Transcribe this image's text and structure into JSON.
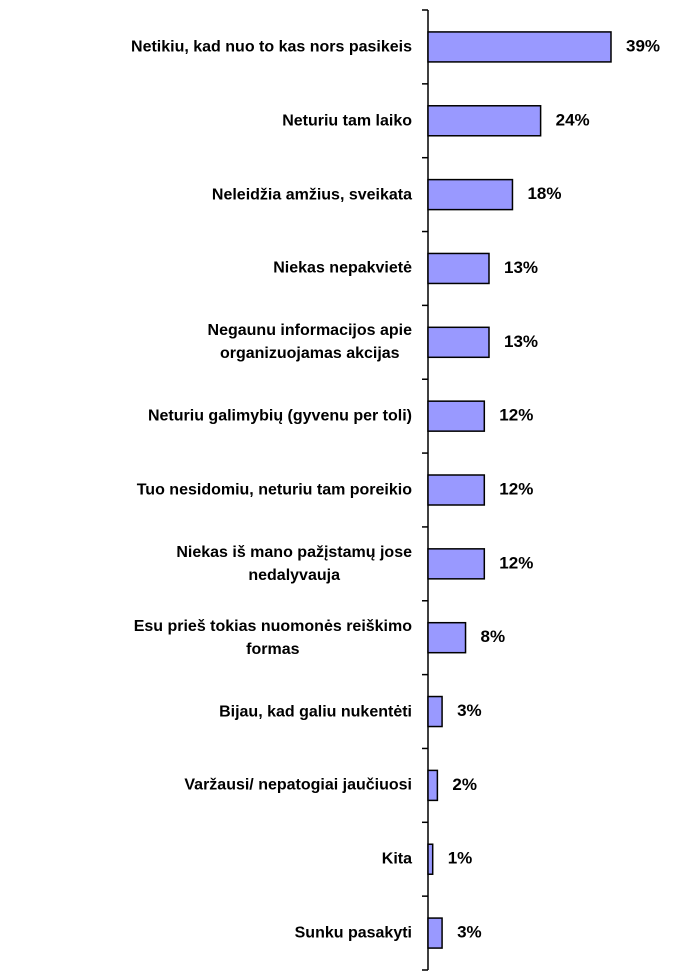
{
  "chart_data": {
    "type": "bar",
    "categories": [
      "Netikiu, kad nuo to kas nors pasikeis",
      "Neturiu tam laiko",
      "Neleidžia amžius, sveikata",
      "Niekas nepakvietė",
      "Negaunu informacijos apie\norganizuojamas akcijas",
      "Neturiu galimybių (gyvenu per toli)",
      "Tuo nesidomiu, neturiu tam poreikio",
      "Niekas iš mano pažįstamų jose\nnedalyvauja",
      "Esu prieš tokias nuomonės reiškimo\nformas",
      "Bijau, kad galiu nukentėti",
      "Varžausi/ nepatogiai jaučiuosi",
      "Kita",
      "Sunku pasakyti"
    ],
    "values": [
      39,
      24,
      18,
      13,
      13,
      12,
      12,
      12,
      8,
      3,
      2,
      1,
      3
    ],
    "value_labels": [
      "39%",
      "24%",
      "18%",
      "13%",
      "13%",
      "12%",
      "12%",
      "12%",
      "8%",
      "3%",
      "2%",
      "1%",
      "3%"
    ],
    "color": "#9999ff"
  }
}
